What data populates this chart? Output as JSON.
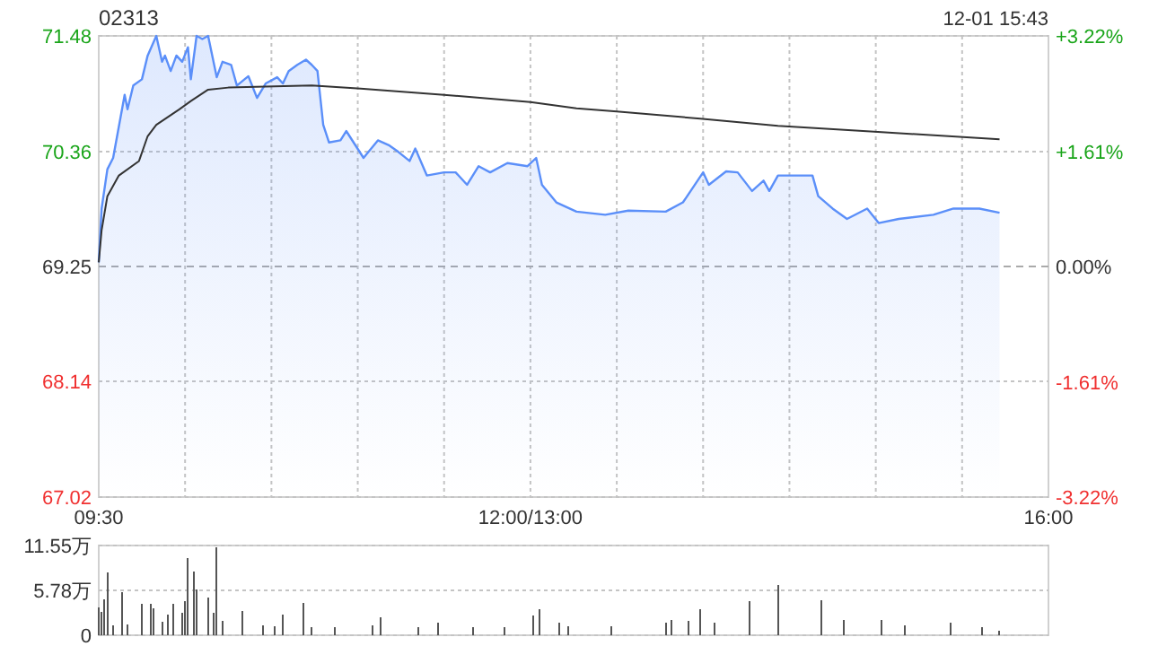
{
  "chart_data": [
    {
      "type": "area",
      "title": "02313",
      "annotations": [
        "12-01 15:43"
      ],
      "categories": [
        "09:30",
        null,
        null,
        null,
        null,
        null,
        null,
        null,
        null,
        null,
        null,
        null,
        null,
        null,
        null,
        null,
        null,
        null,
        null,
        null,
        null,
        null,
        null,
        null,
        null,
        null,
        null,
        null,
        null,
        null,
        null,
        null,
        null,
        null,
        null,
        null,
        null,
        null,
        null,
        null,
        null,
        null,
        null,
        null,
        null,
        null,
        null,
        null,
        null,
        null,
        null,
        null,
        null,
        null,
        null,
        null,
        null,
        null,
        null,
        null,
        null,
        null,
        null,
        null,
        null,
        null,
        null,
        null,
        null,
        null,
        null,
        null,
        null,
        null,
        null,
        null,
        null,
        null,
        null,
        null,
        null,
        null,
        null,
        null,
        null,
        null,
        null,
        null,
        null,
        null,
        null,
        null,
        null,
        null,
        null,
        null,
        null,
        null,
        null,
        null,
        null,
        null,
        null,
        null,
        null,
        null,
        null,
        null,
        null,
        null,
        null,
        null,
        null,
        null,
        null,
        null,
        null,
        null,
        null,
        null,
        null,
        null,
        null,
        null,
        null,
        null,
        null,
        null,
        null,
        null,
        null,
        null,
        null,
        null,
        null,
        null,
        null,
        null,
        null,
        null,
        null,
        null,
        null,
        null,
        null,
        null,
        null,
        null,
        null,
        null,
        "12:00/13:00",
        null,
        null,
        null,
        null,
        null,
        null,
        null,
        null,
        null,
        null,
        null,
        null,
        null,
        null,
        null,
        null,
        null,
        null,
        null,
        null,
        null,
        null,
        null,
        null,
        null,
        null,
        null,
        null,
        null,
        null,
        null,
        null,
        null,
        null,
        null,
        null,
        null,
        null,
        null,
        null,
        null,
        null,
        null,
        null,
        null,
        null,
        null,
        null,
        null,
        null,
        null,
        null,
        null,
        null,
        null,
        null,
        null,
        null,
        null,
        null,
        null,
        null,
        null,
        null,
        null,
        null,
        null,
        null,
        null,
        null,
        null,
        null,
        null,
        null,
        null,
        null,
        null,
        null,
        null,
        null,
        null,
        null,
        null,
        null,
        null,
        null,
        null,
        null,
        null,
        null,
        null,
        null,
        null,
        null,
        null,
        null,
        null,
        null,
        null,
        null,
        null,
        null,
        null,
        null,
        null,
        null,
        null,
        null,
        null,
        null,
        null,
        null,
        null,
        null,
        null,
        null,
        null,
        null,
        null,
        null,
        null,
        null,
        null,
        null,
        null,
        null,
        null,
        null,
        null,
        null,
        null,
        null,
        null,
        null,
        null,
        null,
        null,
        null,
        null,
        null,
        null,
        null,
        null,
        null,
        null,
        null,
        null,
        null,
        null,
        null,
        null,
        null,
        null,
        null,
        null,
        null,
        null,
        null,
        null,
        null,
        null,
        null,
        null,
        null,
        null,
        null,
        null,
        null,
        null,
        null,
        null,
        null,
        null,
        null,
        null,
        null,
        null,
        null,
        null,
        "16:00"
      ],
      "ylim": [
        67.02,
        71.48
      ],
      "yticks": [
        67.02,
        68.14,
        69.25,
        70.36,
        71.48
      ],
      "y2lim": [
        -3.22,
        3.22
      ],
      "y2ticks": [
        {
          "value": -3.22,
          "label": "-3.22%"
        },
        {
          "value": -1.61,
          "label": "-1.61%"
        },
        {
          "value": 0,
          "label": "0.00%"
        },
        {
          "value": 1.61,
          "label": "+1.61%"
        },
        {
          "value": 3.22,
          "label": "+3.22%"
        }
      ],
      "grid": true,
      "ref_lines": [
        {
          "axis": "y",
          "value": 69.25,
          "line_style": "dashed",
          "color": "#aaaaaa"
        }
      ],
      "series": [
        {
          "color": "#5b8ff9",
          "values": [
            69.29,
            69.81,
            null,
            70.19,
            null,
            70.3,
            null,
            null,
            null,
            70.91,
            70.77,
            null,
            71.0,
            null,
            null,
            71.06,
            null,
            71.29,
            null,
            null,
            71.48,
            null,
            71.23,
            71.29,
            null,
            71.14,
            null,
            71.29,
            null,
            71.23,
            null,
            71.37,
            71.06,
            null,
            71.48,
            null,
            71.45,
            null,
            71.48,
            null,
            null,
            71.08,
            null,
            71.23,
            null,
            null,
            71.2,
            null,
            71.0,
            null,
            null,
            null,
            71.09,
            null,
            null,
            70.88,
            null,
            null,
            71.02,
            null,
            null,
            null,
            71.08,
            null,
            71.02,
            null,
            71.14,
            null,
            null,
            71.2,
            null,
            null,
            71.25,
            null,
            71.2,
            null,
            71.14,
            null,
            70.62,
            null,
            70.45,
            null,
            null,
            null,
            70.47,
            null,
            70.56,
            null,
            null,
            null,
            null,
            null,
            70.3,
            null,
            null,
            null,
            null,
            70.47,
            null,
            null,
            null,
            70.42,
            null,
            null,
            70.36,
            null,
            null,
            null,
            70.27,
            null,
            70.39,
            null,
            null,
            null,
            70.13,
            null,
            null,
            null,
            null,
            null,
            70.16,
            null,
            null,
            null,
            70.16,
            null,
            null,
            null,
            70.04,
            null,
            null,
            null,
            70.22,
            null,
            null,
            null,
            70.16,
            null,
            null,
            null,
            null,
            null,
            70.25,
            null,
            null,
            null,
            null,
            null,
            null,
            70.22,
            null,
            null,
            70.3,
            null,
            70.04,
            null,
            null,
            null,
            null,
            69.87,
            null,
            null,
            null,
            null,
            null,
            null,
            69.78,
            null,
            null,
            null,
            null,
            null,
            null,
            null,
            null,
            null,
            69.75,
            null,
            null,
            null,
            null,
            null,
            null,
            null,
            69.79,
            null,
            null,
            null,
            null,
            null,
            null,
            null,
            null,
            null,
            null,
            null,
            null,
            69.78,
            null,
            null,
            null,
            null,
            null,
            69.87,
            null,
            null,
            null,
            null,
            null,
            null,
            70.16,
            null,
            70.04,
            null,
            null,
            null,
            null,
            null,
            70.17,
            null,
            null,
            null,
            70.16,
            null,
            null,
            null,
            null,
            69.98,
            null,
            null,
            null,
            70.08,
            null,
            69.98,
            null,
            null,
            70.13,
            null,
            null,
            null,
            null,
            null,
            null,
            null,
            null,
            null,
            null,
            null,
            70.13,
            null,
            69.93,
            null,
            null,
            null,
            null,
            69.81,
            null,
            null,
            null,
            null,
            69.71,
            null,
            null,
            null,
            null,
            null,
            null,
            69.81,
            null,
            null,
            null,
            69.67,
            null,
            null,
            null,
            null,
            null,
            null,
            69.71,
            null,
            null,
            null,
            null,
            null,
            null,
            null,
            null,
            null,
            null,
            null,
            69.75,
            null,
            null,
            null,
            null,
            null,
            null,
            69.81,
            null,
            null,
            null,
            null,
            null,
            null,
            null,
            null,
            69.81,
            null,
            null,
            null,
            null,
            null,
            null,
            69.77,
            null,
            null,
            null,
            null,
            null,
            null,
            null,
            null,
            null,
            null,
            null,
            null,
            null,
            null,
            null,
            null,
            null
          ]
        },
        {
          "type": "line",
          "color": "#333333",
          "values": [
            69.29,
            69.6,
            null,
            69.93,
            null,
            null,
            null,
            70.13,
            null,
            null,
            null,
            null,
            null,
            null,
            70.27,
            null,
            null,
            70.51,
            null,
            null,
            70.62,
            null,
            null,
            null,
            null,
            null,
            null,
            null,
            70.77,
            null,
            null,
            null,
            70.85,
            null,
            null,
            null,
            null,
            null,
            70.96,
            null,
            null,
            null,
            null,
            null,
            null,
            70.98,
            null,
            null,
            null,
            null,
            null,
            null,
            null,
            null,
            null,
            null,
            null,
            null,
            null,
            null,
            null,
            null,
            null,
            null,
            null,
            null,
            null,
            null,
            null,
            null,
            null,
            null,
            null,
            null,
            71.0,
            null,
            null,
            null,
            null,
            null,
            null,
            null,
            null,
            null,
            null,
            null,
            null,
            null,
            null,
            null,
            null,
            70.97,
            null,
            null,
            null,
            null,
            null,
            null,
            null,
            null,
            null,
            null,
            null,
            null,
            null,
            null,
            null,
            null,
            null,
            null,
            null,
            null,
            null,
            null,
            null,
            null,
            null,
            null,
            null,
            null,
            70.91,
            null,
            null,
            null,
            null,
            null,
            null,
            null,
            null,
            null,
            null,
            null,
            null,
            null,
            null,
            null,
            null,
            null,
            null,
            null,
            null,
            null,
            null,
            null,
            null,
            null,
            null,
            null,
            null,
            null,
            70.84,
            null,
            null,
            null,
            null,
            null,
            null,
            null,
            null,
            null,
            null,
            null,
            null,
            null,
            null,
            null,
            70.78,
            null,
            null,
            null,
            null,
            null,
            null,
            null,
            null,
            null,
            null,
            null,
            null,
            null,
            70.75,
            null,
            null,
            null,
            null,
            null,
            null,
            null,
            null,
            null,
            null,
            null,
            null,
            null,
            null,
            null,
            null,
            null,
            null,
            null,
            null,
            null,
            null,
            null,
            null,
            null,
            null,
            null,
            null,
            70.68,
            null,
            null,
            null,
            null,
            null,
            null,
            null,
            null,
            null,
            null,
            null,
            null,
            null,
            null,
            null,
            null,
            null,
            null,
            null,
            null,
            null,
            null,
            null,
            null,
            null,
            null,
            70.61,
            null,
            null,
            null,
            null,
            null,
            null,
            null,
            null,
            null,
            null,
            null,
            null,
            null,
            null,
            null,
            null,
            null,
            null,
            null,
            null,
            null,
            null,
            null,
            null,
            null,
            null,
            null,
            null,
            null,
            null,
            null,
            null,
            null,
            null,
            null,
            70.55,
            null,
            null,
            null,
            null,
            null,
            null,
            null,
            null,
            null,
            null,
            null,
            null,
            null,
            null,
            null,
            null,
            null,
            null,
            null,
            null,
            null,
            null,
            null,
            null,
            null,
            null,
            null,
            null,
            null,
            null,
            null,
            null,
            null,
            null,
            null,
            null,
            null,
            null,
            null,
            null,
            70.48,
            null,
            null,
            null,
            null,
            null,
            null,
            null,
            null,
            null,
            null,
            null,
            null,
            null,
            null,
            null,
            null,
            null
          ]
        }
      ]
    },
    {
      "type": "bar",
      "ylim": [
        0,
        11.55
      ],
      "yticks": [
        {
          "value": 0,
          "label": "0"
        },
        {
          "value": 5.78,
          "label": "5.78万"
        },
        {
          "value": 11.55,
          "label": "11.55万"
        }
      ],
      "grid": "y",
      "tick_labels": "y",
      "categories": [
        null,
        null,
        null,
        null,
        null,
        null,
        null,
        null,
        null,
        null,
        null,
        null,
        null,
        null,
        null,
        null,
        null,
        null,
        null,
        null,
        null,
        null,
        null,
        null,
        null,
        null,
        null,
        null,
        null,
        null,
        null,
        null,
        null,
        null,
        null,
        null,
        null,
        null,
        null,
        null,
        null,
        null,
        null,
        null,
        null,
        null,
        null,
        null,
        null,
        null,
        null,
        null,
        null,
        null,
        null,
        null,
        null,
        null,
        null,
        null,
        null,
        null,
        null,
        null,
        null,
        null,
        null,
        null,
        null,
        null,
        null,
        null,
        null,
        null,
        null,
        null,
        null,
        null,
        null,
        null,
        null,
        null,
        null,
        null,
        null,
        null,
        null,
        null,
        null,
        null,
        null,
        null,
        null,
        null,
        null,
        null,
        null,
        null,
        null,
        null,
        null,
        null,
        null,
        null,
        null,
        null,
        null,
        null,
        null,
        null,
        null,
        null,
        null,
        null,
        null,
        null,
        null,
        null,
        null,
        null,
        null,
        null,
        null,
        null,
        null,
        null,
        null,
        null,
        null,
        null,
        null,
        null,
        null,
        null,
        null,
        null,
        null,
        null,
        null,
        null,
        null,
        null,
        null,
        null,
        null,
        null,
        null,
        null,
        null,
        null,
        null,
        null,
        null,
        null,
        null,
        null,
        null,
        null,
        null,
        null,
        null,
        null,
        null,
        null,
        null,
        null,
        null,
        null,
        null,
        null,
        null,
        null,
        null,
        null,
        null,
        null,
        null,
        null,
        null,
        null,
        null,
        null,
        null,
        null,
        null,
        null,
        null,
        null,
        null,
        null,
        null,
        null,
        null,
        null,
        null,
        null,
        null,
        null,
        null,
        null,
        null,
        null,
        null,
        null,
        null,
        null,
        null,
        null,
        null,
        null,
        null,
        null,
        null,
        null,
        null,
        null,
        null,
        null,
        null,
        null,
        null,
        null,
        null,
        null,
        null,
        null,
        null,
        null,
        null,
        null,
        null,
        null,
        null,
        null,
        null,
        null,
        null,
        null,
        null,
        null,
        null,
        null,
        null,
        null,
        null,
        null,
        null,
        null,
        null,
        null,
        null,
        null,
        null,
        null,
        null,
        null,
        null,
        null,
        null,
        null,
        null,
        null,
        null,
        null,
        null,
        null,
        null,
        null,
        null,
        null,
        null,
        null,
        null,
        null,
        null,
        null,
        null,
        null,
        null,
        null,
        null,
        null,
        null,
        null,
        null,
        null,
        null,
        null,
        null,
        null,
        null,
        null,
        null,
        null,
        null,
        null,
        null,
        null,
        null,
        null,
        null,
        null,
        null,
        null,
        null,
        null,
        null,
        null,
        null,
        null,
        null,
        null,
        null,
        null,
        null,
        null,
        null,
        null,
        null,
        null,
        null,
        null,
        null,
        null,
        null,
        null,
        null,
        null,
        null,
        null,
        null
      ],
      "series": [
        {
          "color": "#555555",
          "values": [
            3.6,
            3.0,
            4.6,
            8.1,
            null,
            1.3,
            null,
            null,
            5.5,
            null,
            1.4,
            null,
            null,
            null,
            null,
            4.0,
            null,
            null,
            4.0,
            3.5,
            null,
            null,
            1.7,
            null,
            2.6,
            null,
            4.0,
            null,
            null,
            2.9,
            4.4,
            9.9,
            null,
            8.2,
            5.9,
            null,
            null,
            null,
            4.9,
            null,
            2.9,
            11.3,
            null,
            1.8,
            null,
            null,
            null,
            null,
            null,
            null,
            3.1,
            null,
            null,
            null,
            null,
            null,
            null,
            1.3,
            null,
            null,
            null,
            1.1,
            null,
            null,
            2.6,
            null,
            null,
            null,
            null,
            null,
            null,
            4.2,
            null,
            null,
            1.0,
            null,
            null,
            null,
            null,
            null,
            null,
            null,
            1.0,
            null,
            null,
            null,
            null,
            null,
            null,
            null,
            null,
            null,
            null,
            null,
            null,
            1.3,
            null,
            null,
            2.3,
            null,
            null,
            null,
            null,
            null,
            null,
            null,
            null,
            null,
            null,
            null,
            null,
            1.0,
            null,
            null,
            null,
            null,
            null,
            null,
            1.6,
            null,
            null,
            null,
            null,
            null,
            null,
            null,
            null,
            null,
            null,
            null,
            1.0,
            null,
            null,
            null,
            null,
            null,
            null,
            null,
            null,
            null,
            null,
            1.0,
            null,
            null,
            null,
            null,
            null,
            null,
            null,
            null,
            null,
            2.5,
            null,
            3.4,
            null,
            null,
            null,
            null,
            null,
            null,
            1.6,
            null,
            null,
            1.1,
            null,
            null,
            null,
            null,
            null,
            null,
            null,
            null,
            null,
            null,
            null,
            null,
            null,
            null,
            1.1,
            null,
            null,
            null,
            null,
            null,
            null,
            null,
            null,
            null,
            null,
            null,
            null,
            null,
            null,
            null,
            null,
            null,
            null,
            1.6,
            null,
            2.0,
            null,
            null,
            null,
            null,
            null,
            1.8,
            null,
            null,
            null,
            3.3,
            null,
            null,
            null,
            null,
            1.6,
            null,
            null,
            null,
            null,
            null,
            null,
            null,
            null,
            null,
            null,
            null,
            4.4,
            null,
            null,
            null,
            null,
            null,
            null,
            null,
            null,
            null,
            6.5,
            null,
            null,
            null,
            null,
            null,
            null,
            null,
            null,
            null,
            null,
            null,
            null,
            null,
            null,
            4.5,
            null,
            null,
            null,
            null,
            null,
            null,
            null,
            2.0,
            null,
            null,
            null,
            null,
            null,
            null,
            null,
            null,
            null,
            null,
            null,
            null,
            2.0,
            null,
            null,
            null,
            null,
            null,
            null,
            null,
            1.3,
            null,
            null,
            null,
            null,
            null,
            null,
            null,
            null,
            null,
            null,
            null,
            null,
            null,
            null,
            null,
            1.6,
            null,
            null,
            null,
            null,
            null,
            null,
            null,
            null,
            null,
            null,
            1.0,
            null,
            null,
            null,
            null,
            null,
            0.6,
            null,
            null,
            null,
            null,
            null,
            null,
            null,
            null,
            null,
            null,
            null,
            null,
            null,
            null,
            null,
            null,
            null
          ]
        }
      ]
    }
  ]
}
